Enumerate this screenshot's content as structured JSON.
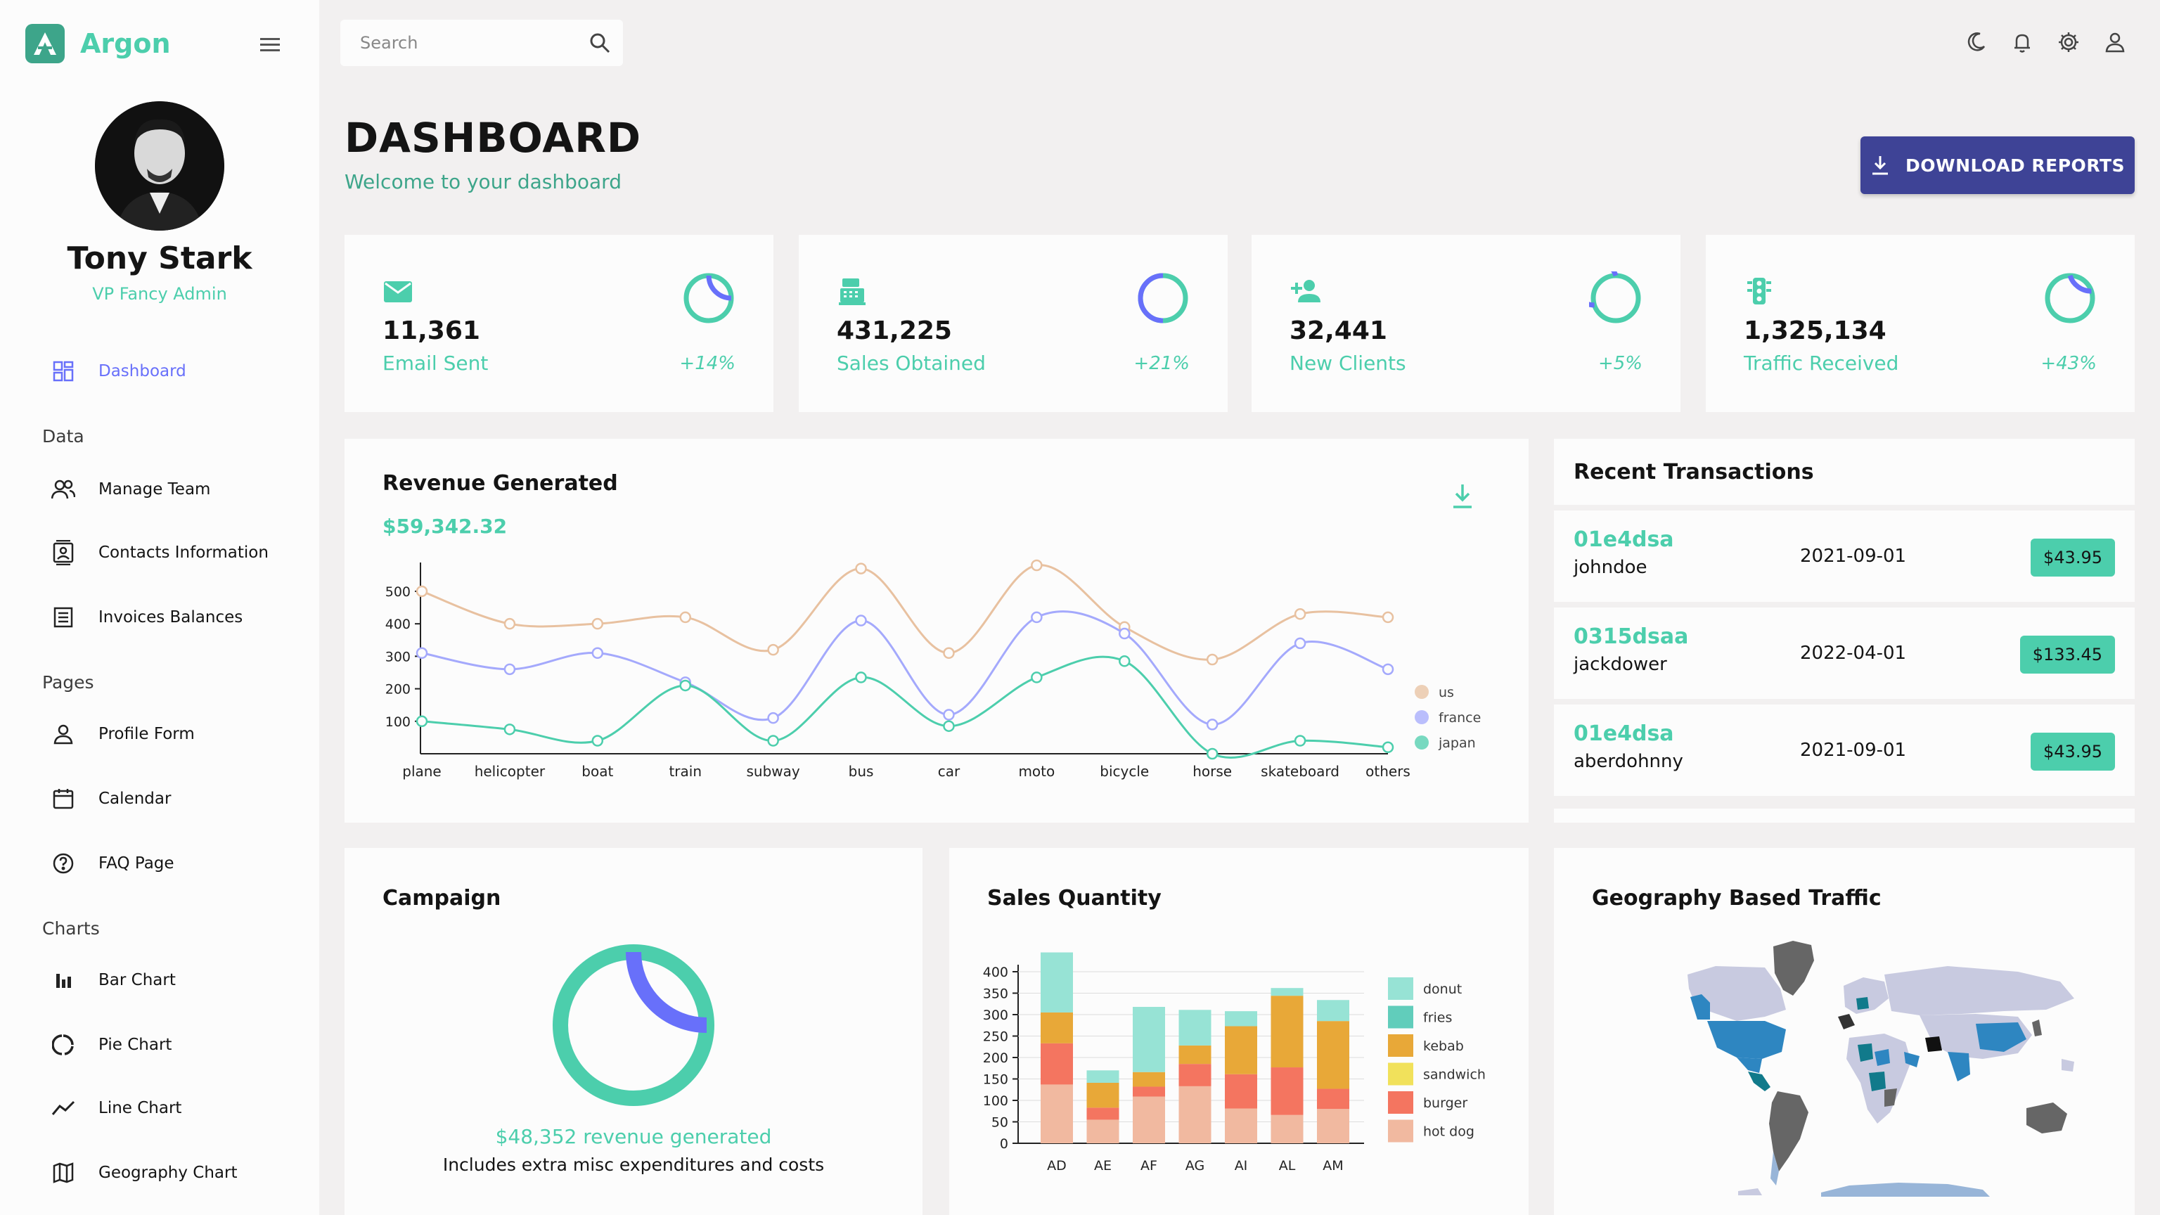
{
  "brand": {
    "name": "Argon"
  },
  "profile": {
    "name": "Tony Stark",
    "role": "VP Fancy Admin"
  },
  "sidebar": {
    "dashboard": "Dashboard",
    "sections": {
      "data": "Data",
      "pages": "Pages",
      "charts": "Charts"
    },
    "data_items": [
      "Manage Team",
      "Contacts Information",
      "Invoices Balances"
    ],
    "pages_items": [
      "Profile Form",
      "Calendar",
      "FAQ Page"
    ],
    "charts_items": [
      "Bar Chart",
      "Pie Chart",
      "Line Chart",
      "Geography Chart"
    ]
  },
  "topbar": {
    "search_placeholder": "Search"
  },
  "header": {
    "title": "DASHBOARD",
    "subtitle": "Welcome to your dashboard",
    "download_label": "DOWNLOAD REPORTS"
  },
  "stats": [
    {
      "value": "11,361",
      "label": "Email Sent",
      "change": "+14%",
      "progress": 0.75,
      "icon": "email-icon"
    },
    {
      "value": "431,225",
      "label": "Sales Obtained",
      "change": "+21%",
      "progress": 0.5,
      "icon": "point-of-sale-icon"
    },
    {
      "value": "32,441",
      "label": "New Clients",
      "change": "+5%",
      "progress": 0.3,
      "icon": "person-add-icon"
    },
    {
      "value": "1,325,134",
      "label": "Traffic Received",
      "change": "+43%",
      "progress": 0.8,
      "icon": "traffic-icon"
    }
  ],
  "revenue": {
    "title": "Revenue Generated",
    "amount": "$59,342.32"
  },
  "transactions": {
    "title": "Recent Transactions",
    "rows": [
      {
        "txId": "01e4dsa",
        "user": "johndoe",
        "date": "2021-09-01",
        "cost": "$43.95"
      },
      {
        "txId": "0315dsaa",
        "user": "jackdower",
        "date": "2022-04-01",
        "cost": "$133.45"
      },
      {
        "txId": "01e4dsa",
        "user": "aberdohnny",
        "date": "2021-09-01",
        "cost": "$43.95"
      }
    ]
  },
  "campaign": {
    "title": "Campaign",
    "revenue_text": "$48,352 revenue generated",
    "note": "Includes extra misc expenditures and costs",
    "progress": 0.75
  },
  "sales": {
    "title": "Sales Quantity"
  },
  "geo": {
    "title": "Geography Based Traffic"
  },
  "colors": {
    "accent": "#4cceac",
    "primary_button": "#3e4396",
    "blue_accent": "#6870fa"
  },
  "chart_data": [
    {
      "type": "line",
      "categories": [
        "plane",
        "helicopter",
        "boat",
        "train",
        "subway",
        "bus",
        "car",
        "moto",
        "bicycle",
        "horse",
        "skateboard",
        "others"
      ],
      "series": [
        {
          "name": "us",
          "color": "#e8c1a0",
          "values": [
            500,
            400,
            400,
            420,
            320,
            570,
            310,
            580,
            390,
            290,
            430,
            420
          ]
        },
        {
          "name": "france",
          "color": "#a4a9fc",
          "values": [
            310,
            260,
            310,
            220,
            110,
            410,
            120,
            420,
            370,
            90,
            340,
            260
          ]
        },
        {
          "name": "japan",
          "color": "#4cceac",
          "values": [
            100,
            75,
            40,
            210,
            40,
            235,
            85,
            235,
            285,
            0,
            40,
            20
          ]
        }
      ],
      "yticks": [
        100,
        200,
        300,
        400,
        500
      ],
      "ylim": [
        0,
        580
      ],
      "legend": "right"
    },
    {
      "type": "bar",
      "stacked": true,
      "categories": [
        "AD",
        "AE",
        "AF",
        "AG",
        "AI",
        "AL",
        "AM"
      ],
      "series": [
        {
          "name": "hot dog",
          "color": "#f1b9a0",
          "values": [
            137,
            55,
            109,
            133,
            81,
            66,
            80
          ]
        },
        {
          "name": "burger",
          "color": "#f47560",
          "values": [
            96,
            28,
            23,
            52,
            80,
            111,
            47
          ]
        },
        {
          "name": "sandwich",
          "color": "#f1e15b",
          "values": [
            0,
            0,
            0,
            0,
            0,
            0,
            0
          ]
        },
        {
          "name": "kebab",
          "color": "#e8a838",
          "values": [
            72,
            58,
            34,
            43,
            112,
            167,
            158
          ]
        },
        {
          "name": "fries",
          "color": "#61cdbb",
          "values": [
            0,
            0,
            0,
            0,
            0,
            0,
            0
          ]
        },
        {
          "name": "donut",
          "color": "#97e3d5",
          "values": [
            140,
            29,
            152,
            83,
            35,
            18,
            49
          ]
        }
      ],
      "yticks": [
        0,
        50,
        100,
        150,
        200,
        250,
        300,
        350,
        400
      ],
      "ylim": [
        0,
        420
      ],
      "legend": "right"
    }
  ]
}
